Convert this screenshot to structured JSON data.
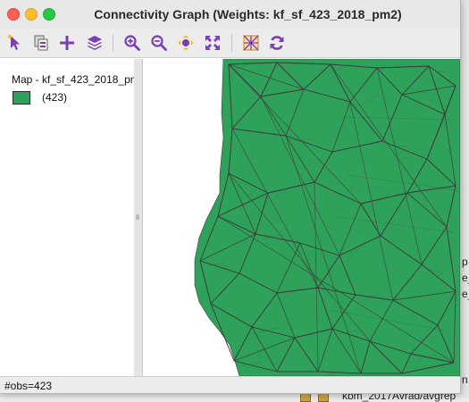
{
  "window": {
    "title": "Connectivity Graph (Weights: kf_sf_423_2018_pm2)"
  },
  "toolbar": {
    "items": [
      {
        "name": "select-tool-icon"
      },
      {
        "name": "copy-window-icon"
      },
      {
        "name": "add-layer-icon"
      },
      {
        "name": "layers-icon"
      },
      {
        "name": "zoom-in-icon"
      },
      {
        "name": "zoom-out-icon"
      },
      {
        "name": "pan-icon"
      },
      {
        "name": "fit-extent-icon"
      },
      {
        "name": "map-theme-icon"
      },
      {
        "name": "refresh-icon"
      }
    ],
    "icon_color": "#7b3fb0"
  },
  "legend": {
    "title": "Map - kf_sf_423_2018_pm2",
    "swatch_color": "#2ea25a",
    "count": "(423)"
  },
  "map": {
    "fill_color": "#2ea25a",
    "edge_color": "#3d3d3d"
  },
  "status": {
    "text": "#obs=423"
  },
  "background_window": {
    "fragments": [
      "p",
      "e_",
      "e_",
      "n",
      "kbm_2017Avrad/avgrep"
    ]
  }
}
